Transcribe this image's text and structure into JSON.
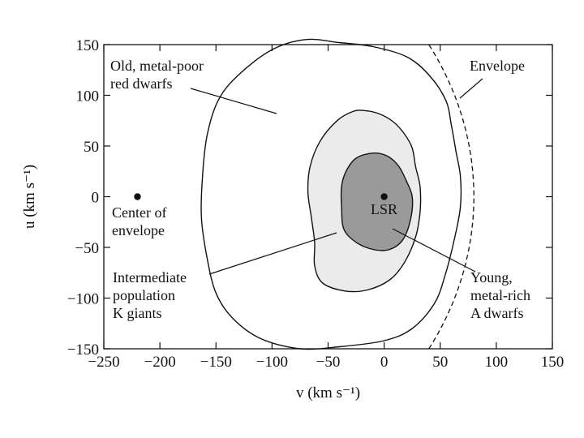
{
  "chart_data": {
    "type": "scatter",
    "title": "",
    "xlabel": "v (km s⁻¹)",
    "ylabel": "u (km s⁻¹)",
    "xlim": [
      -250,
      150
    ],
    "ylim": [
      -150,
      150
    ],
    "xticks": [
      -250,
      -200,
      -150,
      -100,
      -50,
      0,
      50,
      100,
      150
    ],
    "yticks": [
      150,
      100,
      50,
      0,
      -50,
      -100,
      -150
    ],
    "grid": false,
    "points": [
      {
        "name": "Center of envelope",
        "x": -220,
        "y": 0
      },
      {
        "name": "LSR",
        "x": 0,
        "y": 0
      }
    ],
    "contours": [
      {
        "name": "Old, metal-poor red dwarfs",
        "fill": "none",
        "points": [
          [
            -70,
            155
          ],
          [
            -40,
            152
          ],
          [
            -10,
            148
          ],
          [
            20,
            138
          ],
          [
            40,
            120
          ],
          [
            55,
            95
          ],
          [
            60,
            70
          ],
          [
            64,
            45
          ],
          [
            68,
            20
          ],
          [
            68,
            -10
          ],
          [
            63,
            -40
          ],
          [
            55,
            -75
          ],
          [
            45,
            -105
          ],
          [
            25,
            -130
          ],
          [
            0,
            -142
          ],
          [
            -40,
            -148
          ],
          [
            -75,
            -150
          ],
          [
            -110,
            -140
          ],
          [
            -135,
            -120
          ],
          [
            -150,
            -95
          ],
          [
            -158,
            -60
          ],
          [
            -163,
            -20
          ],
          [
            -162,
            20
          ],
          [
            -158,
            60
          ],
          [
            -148,
            95
          ],
          [
            -130,
            120
          ],
          [
            -100,
            145
          ]
        ]
      },
      {
        "name": "Intermediate population K giants",
        "fill": "#ebebeb",
        "points": [
          [
            -18,
            85
          ],
          [
            -5,
            82
          ],
          [
            8,
            74
          ],
          [
            18,
            62
          ],
          [
            25,
            48
          ],
          [
            28,
            30
          ],
          [
            32,
            10
          ],
          [
            32,
            -15
          ],
          [
            28,
            -40
          ],
          [
            18,
            -65
          ],
          [
            5,
            -82
          ],
          [
            -15,
            -92
          ],
          [
            -35,
            -93
          ],
          [
            -55,
            -85
          ],
          [
            -62,
            -68
          ],
          [
            -62,
            -45
          ],
          [
            -65,
            -20
          ],
          [
            -68,
            5
          ],
          [
            -66,
            30
          ],
          [
            -57,
            55
          ],
          [
            -42,
            75
          ],
          [
            -28,
            84
          ]
        ]
      },
      {
        "name": "Young, metal-rich A dwarfs",
        "fill": "#9a9a9a",
        "points": [
          [
            -10,
            43
          ],
          [
            3,
            40
          ],
          [
            13,
            30
          ],
          [
            20,
            15
          ],
          [
            25,
            0
          ],
          [
            24,
            -20
          ],
          [
            17,
            -42
          ],
          [
            5,
            -52
          ],
          [
            -10,
            -52
          ],
          [
            -25,
            -45
          ],
          [
            -36,
            -32
          ],
          [
            -38,
            -10
          ],
          [
            -38,
            10
          ],
          [
            -34,
            25
          ],
          [
            -25,
            38
          ]
        ]
      }
    ],
    "envelope": {
      "name": "Envelope",
      "center": [
        -220,
        0
      ],
      "radius": 300
    },
    "annotations": [
      {
        "lines": [
          "Old, metal-poor",
          "red dwarfs"
        ]
      },
      {
        "lines": [
          "Envelope"
        ]
      },
      {
        "lines": [
          "Center of",
          "envelope"
        ]
      },
      {
        "lines": [
          "LSR"
        ]
      },
      {
        "lines": [
          "Intermediate",
          "population",
          "K giants"
        ]
      },
      {
        "lines": [
          "Young,",
          "metal-rich",
          "A dwarfs"
        ]
      }
    ]
  }
}
